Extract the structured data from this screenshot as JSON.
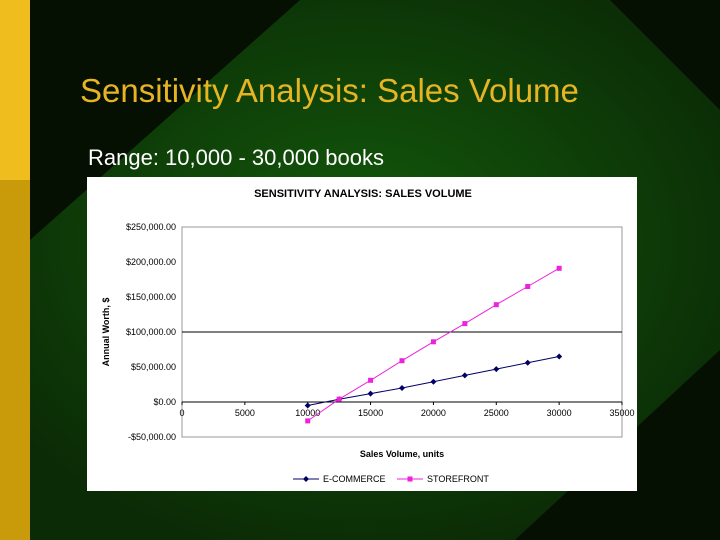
{
  "slide": {
    "title": "Sensitivity Analysis: Sales Volume",
    "subtitle": "Range: 10,000 - 30,000 books"
  },
  "colors": {
    "background": "#0b2a06",
    "accent_gold": "#e7b424",
    "title_text": "#e7b424",
    "ecommerce": "#000066",
    "storefront": "#ee22dd"
  },
  "chart_data": {
    "type": "line",
    "title": "SENSITIVITY ANALYSIS: SALES VOLUME",
    "xlabel": "Sales Volume, units",
    "ylabel": "Annual Worth, $",
    "xlim": [
      0,
      35000
    ],
    "ylim": [
      -50000,
      250000
    ],
    "x_ticks": [
      0,
      5000,
      10000,
      15000,
      20000,
      25000,
      30000,
      35000
    ],
    "x_tick_labels": [
      "0",
      "5000",
      "10000",
      "15000",
      "20000",
      "25000",
      "30000",
      "35000"
    ],
    "y_ticks": [
      -50000,
      0,
      50000,
      100000,
      150000,
      200000,
      250000
    ],
    "y_tick_labels": [
      "-$50,000.00",
      "$0.00",
      "$50,000.00",
      "$100,000.00",
      "$150,000.00",
      "$200,000.00",
      "$250,000.00"
    ],
    "highlight_gridline_y": 100000,
    "legend_position": "bottom",
    "series": [
      {
        "name": "E-COMMERCE",
        "marker": "diamond",
        "color": "#000066",
        "x": [
          10000,
          12500,
          15000,
          17500,
          20000,
          22500,
          25000,
          27500,
          30000
        ],
        "y": [
          -5000,
          4000,
          12000,
          20000,
          29000,
          38000,
          47000,
          56000,
          65000
        ]
      },
      {
        "name": "STOREFRONT",
        "marker": "square",
        "color": "#ee22dd",
        "x": [
          10000,
          12500,
          15000,
          17500,
          20000,
          22500,
          25000,
          27500,
          30000
        ],
        "y": [
          -27000,
          4000,
          31000,
          59000,
          86000,
          112000,
          139000,
          165000,
          191000
        ]
      }
    ]
  }
}
